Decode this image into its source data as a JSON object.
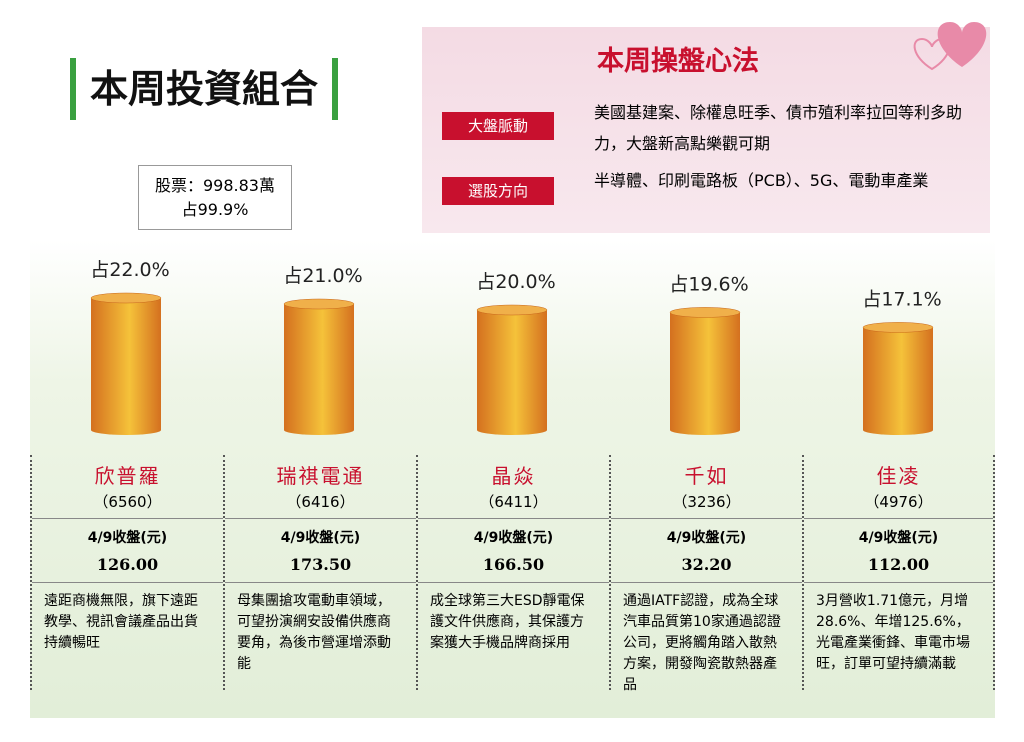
{
  "title": "本周投資組合",
  "summary": {
    "line1": "股票：998.83萬",
    "line2": "占99.9%"
  },
  "strategy": {
    "title": "本周操盤心法",
    "items": [
      {
        "label": "大盤脈動",
        "text": "美國基建案、除權息旺季、債市殖利率拉回等利多助力，大盤新高點樂觀可期"
      },
      {
        "label": "選股方向",
        "text": "半導體、印刷電路板（PCB）、5G、電動車產業"
      }
    ]
  },
  "chart_data": {
    "type": "bar",
    "categories": [
      "欣普羅",
      "瑞祺電通",
      "晶焱",
      "千如",
      "佳凌"
    ],
    "values": [
      22.0,
      21.0,
      20.0,
      19.6,
      17.1
    ],
    "value_labels": [
      "占22.0%",
      "占21.0%",
      "占20.0%",
      "占19.6%",
      "占17.1%"
    ],
    "color": "#e08a2a"
  },
  "stocks": {
    "price_label": "4/9收盤(元)",
    "codes": [
      "（6560）",
      "（6416）",
      "（6411）",
      "（3236）",
      "（4976）"
    ],
    "prices": [
      "126.00",
      "173.50",
      "166.50",
      "32.20",
      "112.00"
    ],
    "notes": [
      "遠距商機無限，旗下遠距教學、視訊會議產品出貨持續暢旺",
      "母集團搶攻電動車領域，可望扮演網安設備供應商要角，為後市營運增添動能",
      "成全球第三大ESD靜電保護文件供應商，其保護方案獲大手機品牌商採用",
      "通過IATF認證，成為全球汽車品質第10家通過認證公司，更將觸角踏入散熱方案，開發陶瓷散熱器產品",
      "3月營收1.71億元，月增28.6%、年增125.6%，光電產業衝鋒、車電市場旺，訂單可望持續滿載"
    ]
  }
}
